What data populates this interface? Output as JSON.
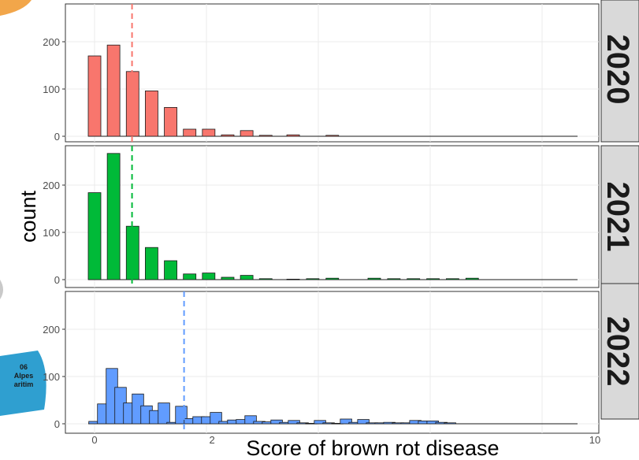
{
  "map_fragment": {
    "code": "06",
    "line1": "Alpes",
    "line2": "aritim",
    "color": "#2f9fd0"
  },
  "chart_data": {
    "type": "bar",
    "xlabel": "Score of brown rot disease",
    "ylabel": "count",
    "x_tick_labels": [
      "0",
      "2",
      "10"
    ],
    "y_ticks": [
      0,
      100,
      200
    ],
    "ylim": [
      0,
      290
    ],
    "grid": true,
    "facets": [
      {
        "label": "2020",
        "color": "#f8766d",
        "mean_line_x": 0.67,
        "bars": [
          {
            "x": 0.0,
            "y": 170
          },
          {
            "x": 0.34,
            "y": 193
          },
          {
            "x": 0.68,
            "y": 137
          },
          {
            "x": 1.02,
            "y": 96
          },
          {
            "x": 1.36,
            "y": 61
          },
          {
            "x": 1.7,
            "y": 15
          },
          {
            "x": 2.04,
            "y": 15
          },
          {
            "x": 2.38,
            "y": 3
          },
          {
            "x": 2.72,
            "y": 12
          },
          {
            "x": 3.06,
            "y": 2
          },
          {
            "x": 3.55,
            "y": 3
          },
          {
            "x": 4.25,
            "y": 2
          }
        ]
      },
      {
        "label": "2021",
        "color": "#00ba38",
        "mean_line_x": 0.67,
        "bars": [
          {
            "x": 0.0,
            "y": 184
          },
          {
            "x": 0.34,
            "y": 267
          },
          {
            "x": 0.68,
            "y": 113
          },
          {
            "x": 1.02,
            "y": 68
          },
          {
            "x": 1.36,
            "y": 40
          },
          {
            "x": 1.7,
            "y": 12
          },
          {
            "x": 2.04,
            "y": 14
          },
          {
            "x": 2.38,
            "y": 5
          },
          {
            "x": 2.72,
            "y": 9
          },
          {
            "x": 3.06,
            "y": 2
          },
          {
            "x": 3.55,
            "y": 1
          },
          {
            "x": 3.9,
            "y": 2
          },
          {
            "x": 4.25,
            "y": 3
          },
          {
            "x": 5.0,
            "y": 3
          },
          {
            "x": 5.35,
            "y": 2
          },
          {
            "x": 5.7,
            "y": 2
          },
          {
            "x": 6.05,
            "y": 2
          },
          {
            "x": 6.4,
            "y": 2
          },
          {
            "x": 6.75,
            "y": 3
          }
        ]
      },
      {
        "label": "2022",
        "color": "#619cff",
        "mean_line_x": 1.6,
        "bars": [
          {
            "x": 0.0,
            "y": 5
          },
          {
            "x": 0.155,
            "y": 42
          },
          {
            "x": 0.31,
            "y": 117
          },
          {
            "x": 0.465,
            "y": 77
          },
          {
            "x": 0.62,
            "y": 44
          },
          {
            "x": 0.775,
            "y": 63
          },
          {
            "x": 0.93,
            "y": 38
          },
          {
            "x": 1.085,
            "y": 28
          },
          {
            "x": 1.24,
            "y": 44
          },
          {
            "x": 1.395,
            "y": 3
          },
          {
            "x": 1.55,
            "y": 37
          },
          {
            "x": 1.705,
            "y": 11
          },
          {
            "x": 1.86,
            "y": 15
          },
          {
            "x": 2.015,
            "y": 15
          },
          {
            "x": 2.17,
            "y": 24
          },
          {
            "x": 2.325,
            "y": 5
          },
          {
            "x": 2.48,
            "y": 8
          },
          {
            "x": 2.635,
            "y": 9
          },
          {
            "x": 2.79,
            "y": 17
          },
          {
            "x": 2.945,
            "y": 5
          },
          {
            "x": 3.1,
            "y": 4
          },
          {
            "x": 3.255,
            "y": 8
          },
          {
            "x": 3.41,
            "y": 3
          },
          {
            "x": 3.565,
            "y": 7
          },
          {
            "x": 3.72,
            "y": 2
          },
          {
            "x": 3.875,
            "y": 1
          },
          {
            "x": 4.03,
            "y": 7
          },
          {
            "x": 4.185,
            "y": 2
          },
          {
            "x": 4.34,
            "y": 1
          },
          {
            "x": 4.495,
            "y": 10
          },
          {
            "x": 4.65,
            "y": 3
          },
          {
            "x": 4.805,
            "y": 9
          },
          {
            "x": 4.96,
            "y": 2
          },
          {
            "x": 5.115,
            "y": 2
          },
          {
            "x": 5.27,
            "y": 3
          },
          {
            "x": 5.425,
            "y": 2
          },
          {
            "x": 5.58,
            "y": 2
          },
          {
            "x": 5.735,
            "y": 7
          },
          {
            "x": 5.89,
            "y": 6
          },
          {
            "x": 6.045,
            "y": 6
          },
          {
            "x": 6.2,
            "y": 3
          },
          {
            "x": 6.355,
            "y": 2
          }
        ]
      }
    ]
  }
}
